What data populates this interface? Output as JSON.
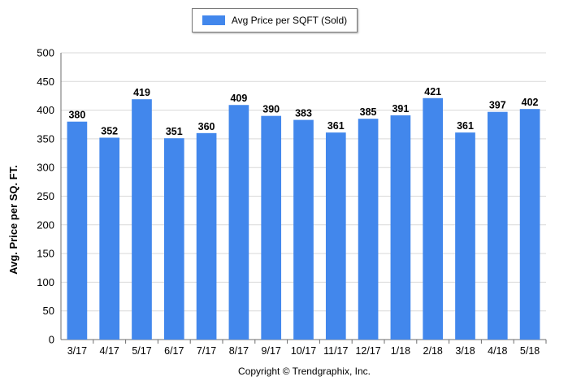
{
  "legend": {
    "label": "Avg Price per SQFT (Sold)"
  },
  "colors": {
    "bar": "#4287ec",
    "grid": "#d9d9d9",
    "axis": "#6e6e6e"
  },
  "footer": {
    "copyright": "Copyright © Trendgraphix, Inc."
  },
  "chart_data": {
    "type": "bar",
    "title": "",
    "xlabel": "",
    "ylabel": "Avg. Price per SQ. FT.",
    "categories": [
      "3/17",
      "4/17",
      "5/17",
      "6/17",
      "7/17",
      "8/17",
      "9/17",
      "10/17",
      "11/17",
      "12/17",
      "1/18",
      "2/18",
      "3/18",
      "4/18",
      "5/18"
    ],
    "series": [
      {
        "name": "Avg Price per SQFT (Sold)",
        "values": [
          380,
          352,
          419,
          351,
          360,
          409,
          390,
          383,
          361,
          385,
          391,
          421,
          361,
          397,
          402
        ]
      }
    ],
    "ylim": [
      0,
      500
    ],
    "yticks": [
      0,
      50,
      100,
      150,
      200,
      250,
      300,
      350,
      400,
      450,
      500
    ],
    "grid": true,
    "legend_position": "top-center",
    "data_labels": true
  }
}
